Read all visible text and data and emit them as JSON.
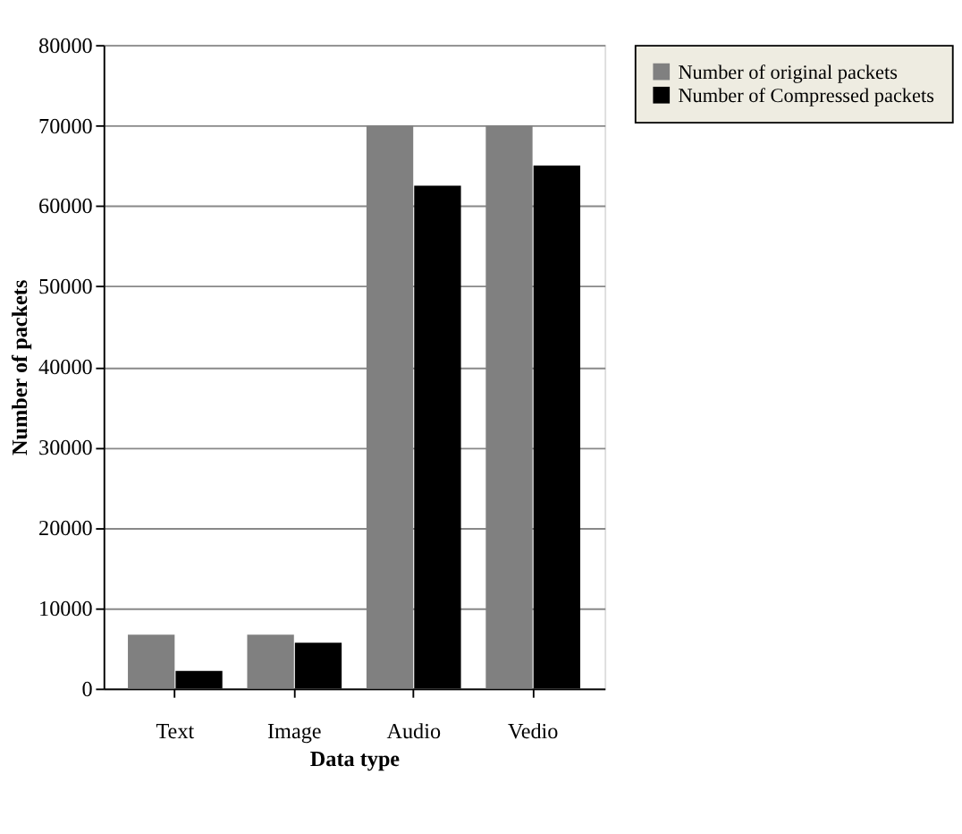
{
  "chart_data": {
    "type": "bar",
    "xlabel": "Data type",
    "ylabel": "Number of packets",
    "categories": [
      "Text",
      "Image",
      "Audio",
      "Vedio"
    ],
    "series": [
      {
        "name": "Number of original packets",
        "color": "#808080",
        "values": [
          6700,
          6700,
          70000,
          70000
        ]
      },
      {
        "name": "Number of Compressed packets",
        "color": "#000000",
        "values": [
          2200,
          5700,
          62500,
          65000
        ]
      }
    ],
    "ylim": [
      0,
      80000
    ],
    "yticks": [
      0,
      10000,
      20000,
      30000,
      40000,
      50000,
      60000,
      70000,
      80000
    ],
    "grid": "y",
    "legend": "right"
  }
}
